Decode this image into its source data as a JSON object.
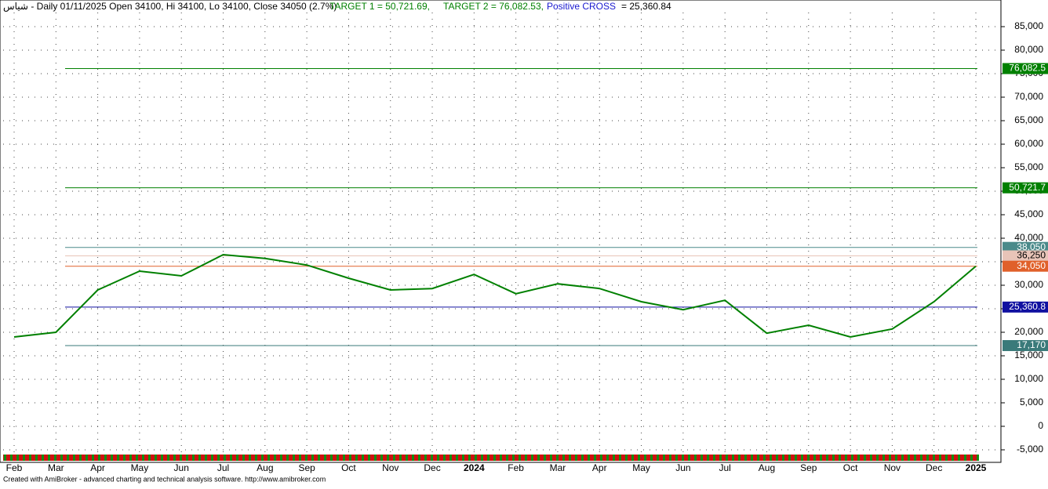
{
  "chart_data": {
    "type": "line",
    "title": "شياس - Daily 01/11/2025 Open 34100, Hi 34100, Lo 34100, Close 34050 (2.7%)",
    "target1_label": "TARGET 1 = 50,721.69,",
    "target2_label": "TARGET 2 = 76,082.53,",
    "cross_label": "Positive CROSS",
    "cross_value_label": "= 25,360.84",
    "footer": "Created with AmiBroker - advanced charting and technical analysis software. http://www.amibroker.com",
    "categories": [
      "Feb",
      "Mar",
      "Apr",
      "May",
      "Jun",
      "Jul",
      "Aug",
      "Sep",
      "Oct",
      "Nov",
      "Dec",
      "2024",
      "Feb",
      "Mar",
      "Apr",
      "May",
      "Jun",
      "Jul",
      "Aug",
      "Sep",
      "Oct",
      "Nov",
      "Dec",
      "2025"
    ],
    "series": [
      {
        "name": "Close",
        "color": "#008000",
        "values": [
          19000,
          20000,
          29000,
          33000,
          32000,
          36500,
          35700,
          34300,
          31500,
          29000,
          29300,
          32300,
          28200,
          30300,
          29300,
          26500,
          24800,
          26800,
          19800,
          21500,
          19000,
          20700,
          26500,
          34050
        ]
      }
    ],
    "levels": [
      {
        "value": 76082.5,
        "label": "76,082.5",
        "color": "#008000"
      },
      {
        "value": 50721.7,
        "label": "50,721.7",
        "color": "#008000"
      },
      {
        "value": 38050,
        "label": "38,050",
        "color": "#4a8a8a"
      },
      {
        "value": 36250,
        "label": "36,250",
        "color": "#e8c4b8"
      },
      {
        "value": 34050,
        "label": "34,050",
        "color": "#e0602a"
      },
      {
        "value": 25360.8,
        "label": "25,360.8",
        "color": "#1010a0"
      },
      {
        "value": 17170,
        "label": "17,170",
        "color": "#e8d8c8"
      },
      {
        "value": 17170,
        "label": "17,170",
        "color": "#3a7a7a"
      }
    ],
    "ylim": [
      -7500,
      90000
    ],
    "yticks": [
      {
        "value": 85000,
        "label": "85,000"
      },
      {
        "value": 80000,
        "label": "80,000"
      },
      {
        "value": 75000,
        "label": "75,000"
      },
      {
        "value": 70000,
        "label": "70,000"
      },
      {
        "value": 65000,
        "label": "65,000"
      },
      {
        "value": 60000,
        "label": "60,000"
      },
      {
        "value": 55000,
        "label": "55,000"
      },
      {
        "value": 50000,
        "label": "50,000"
      },
      {
        "value": 45000,
        "label": "45,000"
      },
      {
        "value": 40000,
        "label": "40,000"
      },
      {
        "value": 35000,
        "label": "35,000"
      },
      {
        "value": 30000,
        "label": "30,000"
      },
      {
        "value": 25000,
        "label": "25,000"
      },
      {
        "value": 20000,
        "label": "20,000"
      },
      {
        "value": 15000,
        "label": "15,000"
      },
      {
        "value": 10000,
        "label": "10,000"
      },
      {
        "value": 5000,
        "label": "5,000"
      },
      0,
      {
        "value": -5000,
        "label": "-5,000"
      }
    ],
    "grid": true
  }
}
